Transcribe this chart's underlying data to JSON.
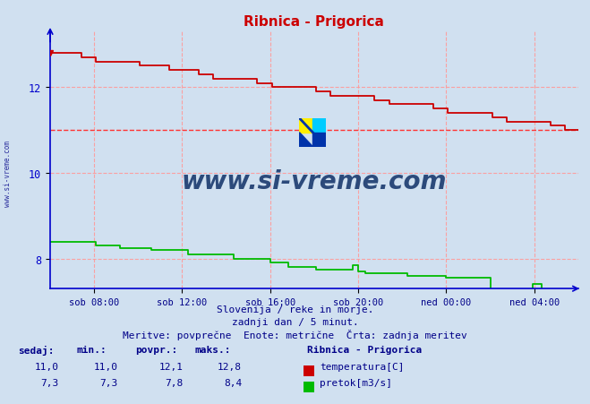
{
  "title": "Ribnica - Prigorica",
  "bg_color": "#d0e0f0",
  "plot_bg_color": "#d0e0f0",
  "grid_color": "#ff9999",
  "axis_color": "#0000cc",
  "title_color": "#cc0000",
  "text_color": "#000088",
  "ylim": [
    7.3,
    13.3
  ],
  "xlim": [
    0,
    288
  ],
  "xtick_positions": [
    24,
    72,
    120,
    168,
    216,
    264
  ],
  "xtick_labels": [
    "sob 08:00",
    "sob 12:00",
    "sob 16:00",
    "sob 20:00",
    "ned 00:00",
    "ned 04:00"
  ],
  "ytick_positions": [
    8,
    10,
    12
  ],
  "ytick_labels": [
    "8",
    "10",
    "12"
  ],
  "hline_value": 11.0,
  "hline_color": "#ff3333",
  "temp_color": "#cc0000",
  "flow_color": "#00bb00",
  "watermark_text": "www.si-vreme.com",
  "watermark_color": "#1a3a6e",
  "footer_line1": "Slovenija / reke in morje.",
  "footer_line2": "zadnji dan / 5 minut.",
  "footer_line3": "Meritve: povprečne  Enote: metrične  Črta: zadnja meritev",
  "legend_title": "Ribnica - Prigorica",
  "legend_temp_label": "temperatura[C]",
  "legend_flow_label": "pretok[m3/s]",
  "table_headers": [
    "sedaj:",
    "min.:",
    "povpr.:",
    "maks.:"
  ],
  "table_temp_values": [
    "11,0",
    "11,0",
    "12,1",
    "12,8"
  ],
  "table_flow_values": [
    "7,3",
    "7,3",
    "7,8",
    "8,4"
  ],
  "logo_colors": [
    "#ffee00",
    "#00ccff",
    "#0033aa"
  ]
}
